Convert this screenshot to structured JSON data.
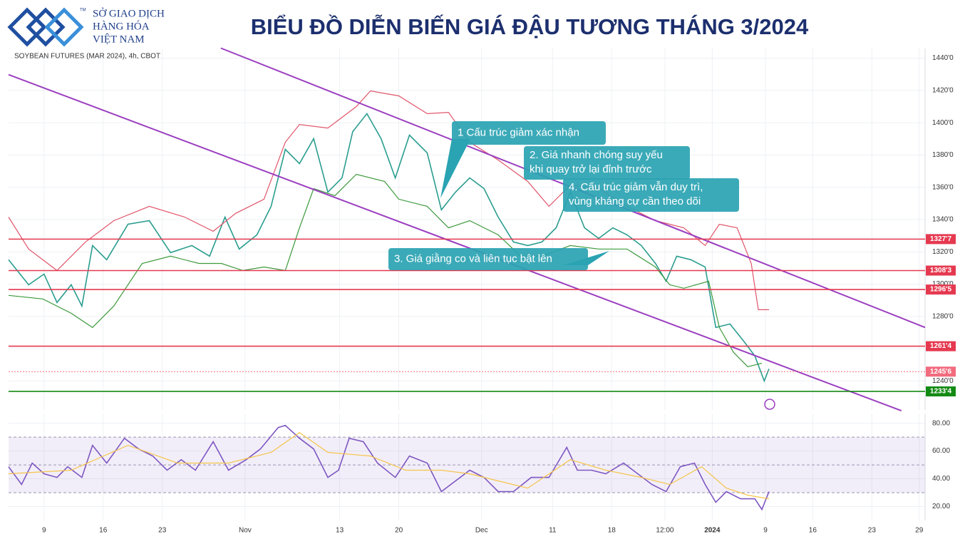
{
  "header": {
    "logo_lines": [
      "SỞ GIAO DỊCH",
      "HÀNG HÓA",
      "VIỆT NAM"
    ],
    "logo_mark": "TM",
    "title": "BIỂU ĐỒ DIỄN BIẾN GIÁ ĐẬU TƯƠNG THÁNG 3/2024"
  },
  "chart_data": [
    {
      "type": "line",
      "title": "SOYBEAN FUTURES (MAR 2024), 4h, CBOT",
      "xlim": [
        -3,
        74.5
      ],
      "xticks": [
        {
          "value": 0,
          "label": "9"
        },
        {
          "value": 5,
          "label": "16"
        },
        {
          "value": 10,
          "label": "23"
        },
        {
          "value": 17,
          "label": "Nov"
        },
        {
          "value": 25,
          "label": "13"
        },
        {
          "value": 30,
          "label": "20"
        },
        {
          "value": 37,
          "label": "Dec"
        },
        {
          "value": 43,
          "label": "11"
        },
        {
          "value": 48,
          "label": "18"
        },
        {
          "value": 52.5,
          "label": "12:00"
        },
        {
          "value": 56.5,
          "label": "2024"
        },
        {
          "value": 61,
          "label": "9"
        },
        {
          "value": 65,
          "label": "16"
        },
        {
          "value": 70,
          "label": "23"
        },
        {
          "value": 74,
          "label": "29"
        }
      ],
      "ylim": [
        1222,
        1446
      ],
      "yticks": [
        {
          "value": 1240,
          "label": "1240'0"
        },
        {
          "value": 1260,
          "label": "1260'0"
        },
        {
          "value": 1280,
          "label": "1280'0"
        },
        {
          "value": 1300,
          "label": "1300'0"
        },
        {
          "value": 1320,
          "label": "1320'0"
        },
        {
          "value": 1340,
          "label": "1340'0"
        },
        {
          "value": 1360,
          "label": "1360'0"
        },
        {
          "value": 1380,
          "label": "1380'0"
        },
        {
          "value": 1400,
          "label": "1400'0"
        },
        {
          "value": 1420,
          "label": "1420'0"
        },
        {
          "value": 1440,
          "label": "1440'0"
        }
      ],
      "grid": true,
      "series": [
        {
          "color": "#2a9d8f",
          "x": [
            -3.0,
            -1.3,
            0.0,
            1.1,
            2.3,
            3.2,
            4.1,
            5.3,
            7.1,
            8.9,
            10.7,
            12.5,
            14.0,
            15.3,
            16.5,
            18.0,
            19.2,
            20.4,
            21.6,
            22.8,
            24.0,
            25.2,
            26.1,
            27.3,
            28.5,
            29.7,
            30.9,
            32.4,
            33.6,
            34.8,
            36.0,
            37.2,
            38.4,
            39.7,
            40.9,
            42.1,
            43.3,
            44.5,
            45.7,
            46.9,
            48.1,
            49.3,
            50.5,
            51.7,
            52.6,
            53.5,
            54.7,
            55.9,
            56.8,
            58.0,
            59.2,
            60.1,
            60.9,
            61.3
          ],
          "values": [
            1315.1,
            1299.6,
            1306.2,
            1288.6,
            1299.6,
            1286.4,
            1323.9,
            1315.1,
            1337.1,
            1339.3,
            1319.5,
            1323.9,
            1317.3,
            1341.5,
            1321.7,
            1330.5,
            1348.2,
            1383.5,
            1374.7,
            1390.1,
            1357.0,
            1365.8,
            1394.5,
            1405.6,
            1390.1,
            1365.8,
            1392.3,
            1381.3,
            1346.0,
            1357.0,
            1365.8,
            1359.2,
            1341.5,
            1326.1,
            1323.9,
            1326.1,
            1334.9,
            1357.0,
            1334.9,
            1328.3,
            1334.9,
            1330.5,
            1323.9,
            1312.8,
            1301.8,
            1317.3,
            1315.1,
            1310.6,
            1273.1,
            1275.3,
            1264.3,
            1255.5,
            1240.0,
            1247.5
          ]
        },
        {
          "color": "#e0566a",
          "x": [
            -3.0,
            -1.3,
            1.1,
            3.5,
            5.9,
            8.9,
            11.9,
            14.3,
            16.2,
            18.6,
            20.4,
            21.6,
            24.0,
            26.4,
            27.6,
            30.0,
            32.4,
            34.2,
            36.0,
            38.4,
            40.9,
            42.7,
            44.5,
            46.9,
            49.3,
            51.7,
            54.1,
            55.9,
            57.1,
            58.6,
            59.8,
            60.4,
            61.3
          ],
          "values": [
            1341.5,
            1321.7,
            1308.4,
            1326.1,
            1339.3,
            1348.2,
            1341.5,
            1332.7,
            1343.8,
            1352.6,
            1387.9,
            1398.9,
            1396.7,
            1410.0,
            1419.7,
            1416.6,
            1405.6,
            1406.4,
            1387.9,
            1376.9,
            1363.6,
            1348.2,
            1361.4,
            1359.2,
            1348.2,
            1339.3,
            1334.9,
            1323.9,
            1337.1,
            1334.9,
            1312.8,
            1284.1,
            1284.1
          ]
        },
        {
          "color": "#3d9a3d",
          "x": [
            -3.0,
            -0.1,
            2.3,
            4.1,
            5.9,
            8.3,
            10.7,
            13.1,
            15.0,
            16.8,
            18.6,
            20.4,
            21.6,
            22.8,
            24.6,
            26.4,
            28.8,
            30.0,
            32.4,
            34.2,
            36.0,
            38.4,
            40.3,
            42.1,
            44.5,
            46.9,
            49.3,
            51.7,
            52.9,
            54.1,
            56.2,
            57.1,
            58.3,
            59.5,
            60.7
          ],
          "values": [
            1293.0,
            1290.8,
            1281.9,
            1273.1,
            1286.4,
            1312.8,
            1317.3,
            1312.8,
            1312.8,
            1308.4,
            1310.6,
            1308.4,
            1334.9,
            1359.2,
            1354.8,
            1368.0,
            1363.6,
            1352.6,
            1348.2,
            1334.9,
            1339.3,
            1330.5,
            1317.3,
            1317.3,
            1323.9,
            1321.7,
            1321.7,
            1310.6,
            1299.6,
            1297.4,
            1301.8,
            1273.1,
            1257.7,
            1248.8,
            1251.0
          ]
        }
      ],
      "levels": [
        {
          "value": 1327.875,
          "label": "1327'7",
          "color": "#e53950"
        },
        {
          "value": 1308.375,
          "label": "1308'3",
          "color": "#e53950"
        },
        {
          "value": 1296.625,
          "label": "1296'5",
          "color": "#e53950"
        },
        {
          "value": 1261.5,
          "label": "1261'4",
          "color": "#e53950"
        },
        {
          "value": 1245.75,
          "label": "1245'6",
          "color": "#f26b7e",
          "style": "dotted"
        },
        {
          "value": 1233.5,
          "label": "1233'4",
          "color": "#138a13"
        }
      ],
      "trendlines": [
        {
          "color": "#9b3fc0",
          "x": [
            14.95,
            74.5
          ],
          "values": [
            1446.2,
            1273.1
          ]
        },
        {
          "color": "#9b3fc0",
          "x": [
            -3.0,
            72.5
          ],
          "values": [
            1429.8,
            1221.5
          ]
        }
      ],
      "annotations": [
        {
          "lines": [
            "1 Cấu trúc giảm xác nhận"
          ]
        },
        {
          "lines": [
            "2. Giá nhanh chóng suy yếu",
            "khi quay trở lại đỉnh trước"
          ]
        },
        {
          "lines": [
            "4. Cấu trúc giảm vẫn duy trì,",
            "vùng kháng cự cần theo dõi"
          ]
        },
        {
          "lines": [
            "3. Giá giằng co và liên tục bật lên"
          ]
        }
      ],
      "annotation_color": "#2aa3b2"
    },
    {
      "type": "line",
      "xlim": [
        -3,
        74.5
      ],
      "ylim": [
        10,
        87
      ],
      "yticks": [
        {
          "value": 20,
          "label": "20.00"
        },
        {
          "value": 40,
          "label": "40.00"
        },
        {
          "value": 60,
          "label": "60.00"
        },
        {
          "value": 80,
          "label": "80.00"
        }
      ],
      "levels": [
        70,
        50,
        30
      ],
      "series": [
        {
          "color": "#7e57c2",
          "x": [
            -3.0,
            -1.9,
            -1.0,
            0.0,
            1.1,
            2.0,
            3.2,
            4.1,
            5.3,
            6.8,
            8.0,
            9.2,
            10.4,
            11.6,
            12.8,
            14.3,
            15.6,
            17.1,
            18.3,
            19.8,
            20.4,
            21.6,
            22.8,
            24.0,
            24.9,
            25.8,
            27.0,
            28.2,
            29.7,
            30.9,
            32.4,
            33.6,
            34.8,
            36.0,
            37.2,
            38.4,
            39.7,
            41.2,
            42.7,
            44.2,
            45.1,
            46.3,
            47.5,
            49.0,
            50.2,
            51.4,
            52.6,
            53.8,
            55.0,
            55.9,
            56.8,
            57.7,
            58.9,
            60.1,
            60.7,
            61.3
          ],
          "values": [
            48.7,
            35.9,
            51.3,
            43.6,
            41.0,
            48.7,
            41.0,
            64.1,
            51.3,
            69.2,
            61.5,
            56.4,
            46.2,
            53.8,
            46.2,
            66.7,
            46.2,
            53.8,
            61.5,
            76.9,
            78.5,
            69.2,
            61.5,
            41.0,
            46.2,
            69.2,
            66.7,
            51.3,
            41.0,
            56.4,
            51.3,
            30.8,
            38.5,
            46.2,
            41.0,
            30.8,
            30.8,
            41.0,
            41.0,
            62.6,
            46.2,
            46.2,
            43.6,
            51.3,
            43.6,
            35.9,
            30.8,
            48.7,
            51.3,
            35.9,
            23.1,
            30.8,
            25.6,
            25.6,
            17.9,
            30.8
          ]
        },
        {
          "color": "#f5c54a",
          "x": [
            -3.0,
            2.3,
            7.1,
            11.3,
            15.6,
            19.2,
            21.6,
            24.0,
            27.6,
            30.6,
            33.6,
            36.0,
            38.4,
            40.9,
            44.5,
            47.5,
            50.5,
            52.9,
            55.6,
            57.7,
            59.5,
            61.3
          ],
          "values": [
            43.6,
            46.2,
            64.1,
            51.3,
            51.3,
            59.0,
            73.3,
            59.0,
            56.4,
            46.2,
            46.2,
            43.6,
            38.5,
            33.3,
            53.8,
            46.2,
            41.0,
            35.9,
            48.7,
            33.3,
            28.2,
            25.6
          ]
        }
      ]
    }
  ]
}
